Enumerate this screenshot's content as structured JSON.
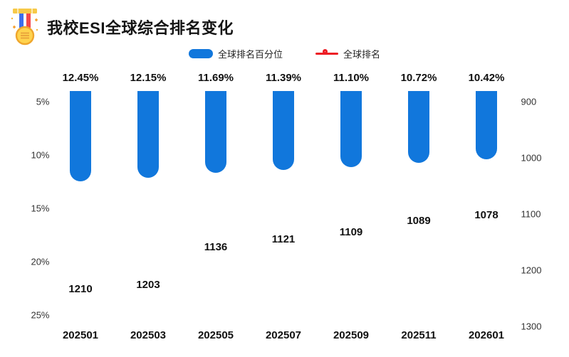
{
  "header": {
    "title": "我校ESI全球综合排名变化",
    "icon": "medal-icon"
  },
  "legend": {
    "items": [
      {
        "label": "全球排名百分位",
        "type": "bar",
        "color": "#1177DC"
      },
      {
        "label": "全球排名",
        "type": "line",
        "color": "#ED1C24"
      }
    ]
  },
  "colors": {
    "bar": "#1177DC",
    "line": "#ED1C24",
    "axis": "#aaaaaa",
    "text": "#111111"
  },
  "chart_data": {
    "type": "bar",
    "title": "我校ESI全球综合排名变化",
    "categories": [
      "202501",
      "202503",
      "202505",
      "202507",
      "202509",
      "202511",
      "202601"
    ],
    "series": [
      {
        "name": "全球排名百分位",
        "type": "bar",
        "axis": "left",
        "unit": "%",
        "values": [
          12.45,
          12.15,
          11.69,
          11.39,
          11.1,
          10.72,
          10.42
        ],
        "labels": [
          "12.45%",
          "12.15%",
          "11.69%",
          "11.39%",
          "11.10%",
          "10.72%",
          "10.42%"
        ],
        "color": "#1177DC"
      },
      {
        "name": "全球排名",
        "type": "line",
        "axis": "right",
        "values": [
          1210,
          1203,
          1136,
          1121,
          1109,
          1089,
          1078
        ],
        "labels": [
          "1210",
          "1203",
          "1136",
          "1121",
          "1109",
          "1089",
          "1078"
        ],
        "color": "#ED1C24"
      }
    ],
    "left_axis": {
      "label": "",
      "ticks": [
        "5%",
        "10%",
        "15%",
        "20%",
        "25%"
      ],
      "tick_values": [
        5,
        10,
        15,
        20,
        25
      ],
      "inverted": true
    },
    "right_axis": {
      "label": "",
      "ticks": [
        "900",
        "1000",
        "1100",
        "1200",
        "1300"
      ],
      "tick_values": [
        900,
        1000,
        1100,
        1200,
        1300
      ],
      "inverted": true
    },
    "grid": false,
    "legend_position": "top-center"
  }
}
